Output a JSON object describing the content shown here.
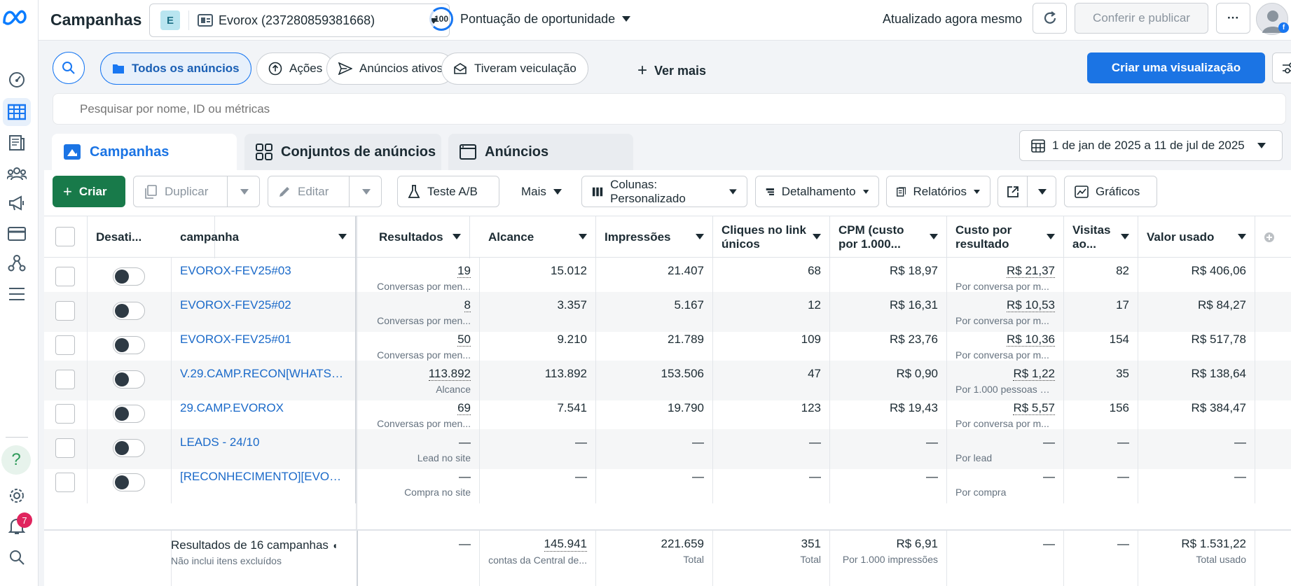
{
  "header": {
    "title": "Campanhas",
    "account_initial": "E",
    "account_name": "Evorox (237280859381668)",
    "score_value": "100",
    "score_label": "Pontuação de oportunidade",
    "updated": "Atualizado agora mesmo",
    "review_publish": "Conferir e publicar",
    "more": "···"
  },
  "filters": {
    "all_ads": "Todos os anúncios",
    "actions": "Ações",
    "active_ads": "Anúncios ativos",
    "delivered": "Tiveram veiculação",
    "see_more": "Ver mais",
    "create_view": "Criar uma visualização",
    "search_placeholder": "Pesquisar por nome, ID ou métricas"
  },
  "tabs": {
    "campaigns": "Campanhas",
    "adsets": "Conjuntos de anúncios",
    "ads": "Anúncios",
    "date_range": "1 de jan de 2025 a 11 de jul de 2025"
  },
  "toolbar": {
    "create": "Criar",
    "duplicate": "Duplicar",
    "edit": "Editar",
    "ab_test": "Teste A/B",
    "more": "Mais",
    "columns": "Colunas: Personalizado",
    "breakdown": "Detalhamento",
    "reports": "Relatórios",
    "charts": "Gráficos"
  },
  "table": {
    "headers": {
      "delivery": "Desati...",
      "campaign": "campanha",
      "results": "Resultados",
      "reach": "Alcance",
      "impressions": "Impressões",
      "unique_clicks_1": "Cliques no link",
      "unique_clicks_2": "únicos",
      "cpm_1": "CPM (custo",
      "cpm_2": "por 1.000...",
      "cpr_1": "Custo por",
      "cpr_2": "resultado",
      "visits_1": "Visitas",
      "visits_2": "ao...",
      "spent": "Valor usado"
    },
    "rows": [
      {
        "name": "EVOROX-FEV25#03",
        "results": "19",
        "results_sub": "Conversas por men...",
        "reach": "15.012",
        "impressions": "21.407",
        "clicks": "68",
        "cpm": "R$ 18,97",
        "cpr": "R$ 21,37",
        "cpr_sub": "Por conversa por m...",
        "visits": "82",
        "spent": "R$ 406,06"
      },
      {
        "name": "EVOROX-FEV25#02",
        "results": "8",
        "results_sub": "Conversas por men...",
        "reach": "3.357",
        "impressions": "5.167",
        "clicks": "12",
        "cpm": "R$ 16,31",
        "cpr": "R$ 10,53",
        "cpr_sub": "Por conversa por m...",
        "visits": "17",
        "spent": "R$ 84,27"
      },
      {
        "name": "EVOROX-FEV25#01",
        "results": "50",
        "results_sub": "Conversas por men...",
        "reach": "9.210",
        "impressions": "21.789",
        "clicks": "109",
        "cpm": "R$ 23,76",
        "cpr": "R$ 10,36",
        "cpr_sub": "Por conversa por m...",
        "visits": "154",
        "spent": "R$ 517,78"
      },
      {
        "name": "V.29.CAMP.RECON[WHATSA...",
        "results": "113.892",
        "results_sub": "Alcance",
        "reach": "113.892",
        "impressions": "153.506",
        "clicks": "47",
        "cpm": "R$ 0,90",
        "cpr": "R$ 1,22",
        "cpr_sub": "Por 1.000 pessoas al...",
        "visits": "35",
        "spent": "R$ 138,64"
      },
      {
        "name": "29.CAMP.EVOROX",
        "results": "69",
        "results_sub": "Conversas por men...",
        "reach": "7.541",
        "impressions": "19.790",
        "clicks": "123",
        "cpm": "R$ 19,43",
        "cpr": "R$ 5,57",
        "cpr_sub": "Por conversa por m...",
        "visits": "156",
        "spent": "R$ 384,47"
      },
      {
        "name": "LEADS - 24/10",
        "results": "—",
        "results_sub": "Lead no site",
        "reach": "—",
        "impressions": "—",
        "clicks": "—",
        "cpm": "—",
        "cpr": "—",
        "cpr_sub": "Por lead",
        "visits": "—",
        "spent": "—"
      },
      {
        "name": "[RECONHECIMENTO][EVORO...",
        "results": "—",
        "results_sub": "Compra no site",
        "reach": "—",
        "impressions": "—",
        "clicks": "—",
        "cpm": "—",
        "cpr": "—",
        "cpr_sub": "Por compra",
        "visits": "—",
        "spent": "—"
      }
    ],
    "footer": {
      "label": "Resultados de 16 campanhas",
      "label_sub": "Não inclui itens excluídos",
      "results": "—",
      "reach": "145.941",
      "reach_sub": "contas da Central de...",
      "impressions": "221.659",
      "impressions_sub": "Total",
      "clicks": "351",
      "clicks_sub": "Total",
      "cpm": "R$ 6,91",
      "cpm_sub": "Por 1.000 impressões",
      "cpr": "—",
      "visits": "—",
      "spent": "R$ 1.531,22",
      "spent_sub": "Total usado"
    }
  },
  "notifications": {
    "count": "7"
  }
}
